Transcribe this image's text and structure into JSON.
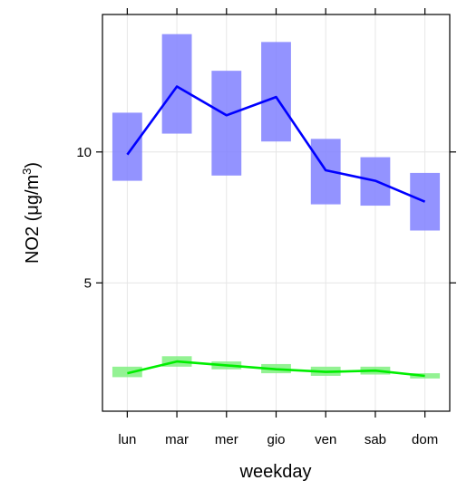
{
  "chart_data": {
    "type": "line",
    "xlabel": "weekday",
    "ylabel": "NO2 (μg/m³)",
    "ylabel_parts": {
      "main": "NO2 (μg/m",
      "sup": "3",
      "tail": ")"
    },
    "categories": [
      "lun",
      "mar",
      "mer",
      "gio",
      "ven",
      "sab",
      "dom"
    ],
    "yticks": [
      5,
      10
    ],
    "ylim": [
      0.1,
      15.25
    ],
    "grid": true,
    "series": [
      {
        "color": "#0000ff",
        "band_color": "#8080ff",
        "mean": [
          9.9,
          12.5,
          11.4,
          12.1,
          9.3,
          8.9,
          8.1
        ],
        "lower": [
          8.9,
          10.7,
          9.1,
          10.4,
          8.0,
          7.95,
          7.0
        ],
        "upper": [
          11.5,
          14.5,
          13.1,
          14.2,
          10.5,
          9.8,
          9.2
        ]
      },
      {
        "color": "#00ee00",
        "band_color": "#80f080",
        "mean": [
          1.55,
          2.0,
          1.85,
          1.7,
          1.6,
          1.65,
          1.45
        ],
        "lower": [
          1.4,
          1.8,
          1.7,
          1.55,
          1.45,
          1.5,
          1.35
        ],
        "upper": [
          1.8,
          2.2,
          2.0,
          1.9,
          1.8,
          1.8,
          1.55
        ]
      }
    ]
  }
}
